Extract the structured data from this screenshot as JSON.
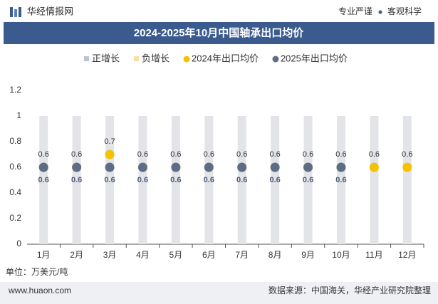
{
  "header": {
    "brand": "华经情报网",
    "slogans": [
      "专业严谨",
      "客观科学"
    ]
  },
  "chart_data": {
    "type": "combo",
    "title": "2024-2025年10月中国轴承出口均价",
    "categories": [
      "1月",
      "2月",
      "3月",
      "4月",
      "5月",
      "6月",
      "7月",
      "8月",
      "9月",
      "10月",
      "11月",
      "12月"
    ],
    "series": [
      {
        "name": "正增长",
        "type": "bar",
        "color": "#e2e4e8",
        "values": [
          1,
          1,
          1,
          1,
          1,
          1,
          1,
          1,
          1,
          1,
          1,
          1
        ]
      },
      {
        "name": "负增长",
        "type": "bar",
        "color": "#fbefcf",
        "values": [
          null,
          null,
          null,
          null,
          null,
          null,
          null,
          null,
          null,
          null,
          null,
          null
        ]
      },
      {
        "name": "2024年出口均价",
        "type": "dot",
        "color": "#f5c100",
        "label_side": "above",
        "values": [
          0.6,
          0.6,
          0.7,
          0.6,
          0.6,
          0.6,
          0.6,
          0.6,
          0.6,
          0.6,
          0.6,
          0.6
        ]
      },
      {
        "name": "2025年出口均价",
        "type": "dot",
        "color": "#5d6d88",
        "label_side": "below",
        "values": [
          0.6,
          0.6,
          0.6,
          0.6,
          0.6,
          0.6,
          0.6,
          0.6,
          0.6,
          0.6,
          null,
          null
        ]
      }
    ],
    "ylim": [
      0,
      1.2
    ],
    "yticks": [
      0,
      0.2,
      0.4,
      0.6,
      0.8,
      1,
      1.2
    ],
    "unit": "单位：万美元/吨"
  },
  "footer": {
    "website": "www.huaon.com",
    "source": "数据来源：中国海关，华经产业研究院整理"
  }
}
